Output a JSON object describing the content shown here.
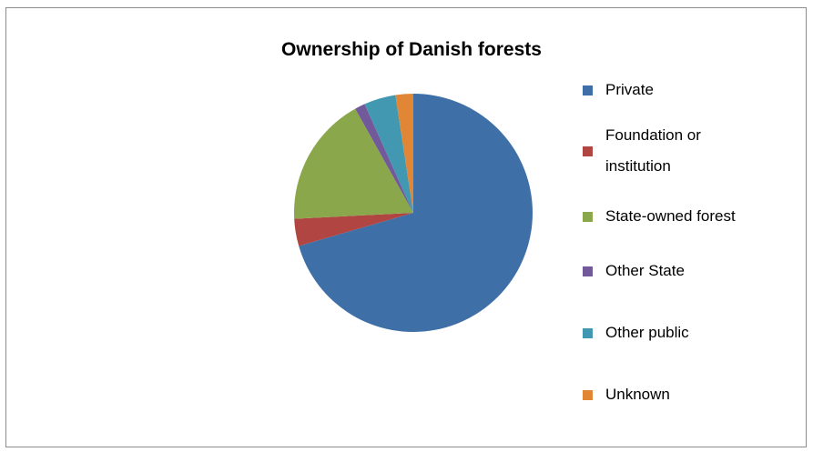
{
  "chart_data": {
    "type": "pie",
    "title": "Ownership of Danish forests",
    "categories": [
      "Private",
      "Foundation or institution",
      "State-owned forest",
      "Other State",
      "Other public",
      "Unknown"
    ],
    "values": [
      70.5,
      3.7,
      17.7,
      1.4,
      4.3,
      2.4
    ],
    "colors": [
      "#3e6fa6",
      "#b04542",
      "#8aa84b",
      "#72599a",
      "#4198b0",
      "#e08634"
    ],
    "legend": "right"
  }
}
